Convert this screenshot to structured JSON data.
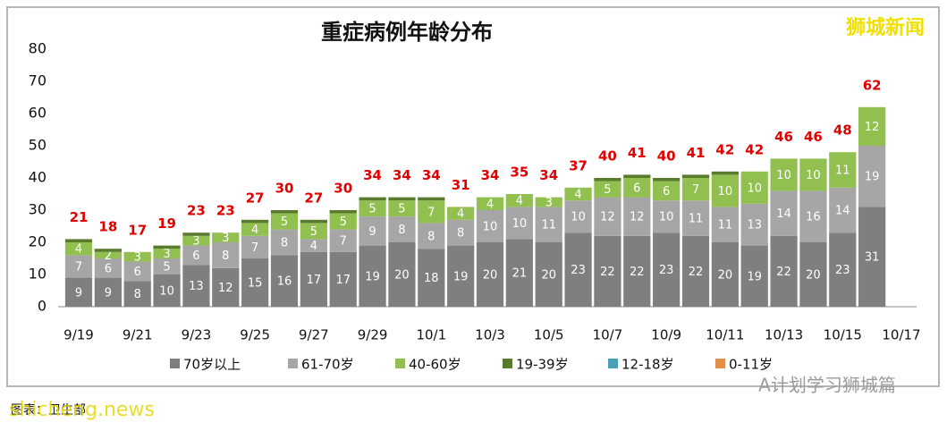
{
  "chart_data": {
    "type": "stacked_bar",
    "title": "重症病例年龄分布",
    "categories": [
      "9/19",
      null,
      "9/21",
      null,
      "9/23",
      null,
      "9/25",
      null,
      "9/27",
      null,
      "9/29",
      null,
      "10/1",
      null,
      "10/3",
      null,
      "10/5",
      null,
      "10/7",
      null,
      "10/9",
      null,
      "10/11",
      null,
      "10/13",
      null,
      "10/15",
      null,
      "10/17"
    ],
    "series": [
      {
        "name": "70岁以上",
        "color": "#7f7f7f",
        "segment_labels": true,
        "values": [
          9,
          9,
          8,
          10,
          13,
          12,
          15,
          16,
          17,
          17,
          19,
          20,
          18,
          19,
          20,
          21,
          20,
          23,
          22,
          22,
          23,
          22,
          20,
          19,
          22,
          20,
          23,
          31,
          null
        ]
      },
      {
        "name": "61-70岁",
        "color": "#a6a6a6",
        "segment_labels": true,
        "values": [
          7,
          6,
          6,
          5,
          6,
          8,
          7,
          8,
          4,
          7,
          9,
          8,
          8,
          8,
          10,
          10,
          11,
          10,
          12,
          12,
          10,
          11,
          11,
          13,
          14,
          16,
          14,
          19,
          null
        ]
      },
      {
        "name": "40-60岁",
        "color": "#92c050",
        "segment_labels": true,
        "values": [
          4,
          2,
          3,
          3,
          3,
          3,
          4,
          5,
          5,
          5,
          5,
          5,
          7,
          4,
          4,
          4,
          3,
          4,
          5,
          6,
          6,
          7,
          10,
          10,
          10,
          10,
          11,
          12,
          null
        ]
      },
      {
        "name": "19-39岁",
        "color": "#5a7a2e",
        "segment_labels": false,
        "values": [
          1,
          1,
          0,
          1,
          1,
          0,
          1,
          1,
          1,
          1,
          1,
          1,
          1,
          0,
          0,
          0,
          0,
          0,
          1,
          1,
          1,
          1,
          1,
          0,
          0,
          0,
          0,
          0,
          null
        ]
      },
      {
        "name": "12-18岁",
        "color": "#4aa0b5",
        "segment_labels": false,
        "values": [
          0,
          0,
          0,
          0,
          0,
          0,
          0,
          0,
          0,
          0,
          0,
          0,
          0,
          0,
          0,
          0,
          0,
          0,
          0,
          0,
          0,
          0,
          0,
          0,
          0,
          0,
          0,
          0,
          null
        ]
      },
      {
        "name": "0-11岁",
        "color": "#e0904a",
        "segment_labels": false,
        "values": [
          0,
          0,
          0,
          0,
          0,
          0,
          0,
          0,
          0,
          0,
          0,
          0,
          0,
          0,
          0,
          0,
          0,
          0,
          0,
          0,
          0,
          0,
          0,
          0,
          0,
          0,
          0,
          0,
          null
        ]
      }
    ],
    "totals": [
      21,
      18,
      17,
      19,
      23,
      23,
      27,
      30,
      27,
      30,
      34,
      34,
      34,
      31,
      34,
      35,
      34,
      37,
      40,
      41,
      40,
      41,
      42,
      42,
      46,
      46,
      48,
      62,
      null
    ],
    "total_color": "#e00000",
    "ylim": [
      0,
      80
    ],
    "yticks": [
      0,
      10,
      20,
      30,
      40,
      50,
      60,
      70,
      80
    ],
    "grid": false
  },
  "watermarks": {
    "top_right": "狮城新闻",
    "bottom_right": "A计划学习狮城篇",
    "bottom_left": "shicheng.news",
    "source": "图表：卫生部"
  }
}
